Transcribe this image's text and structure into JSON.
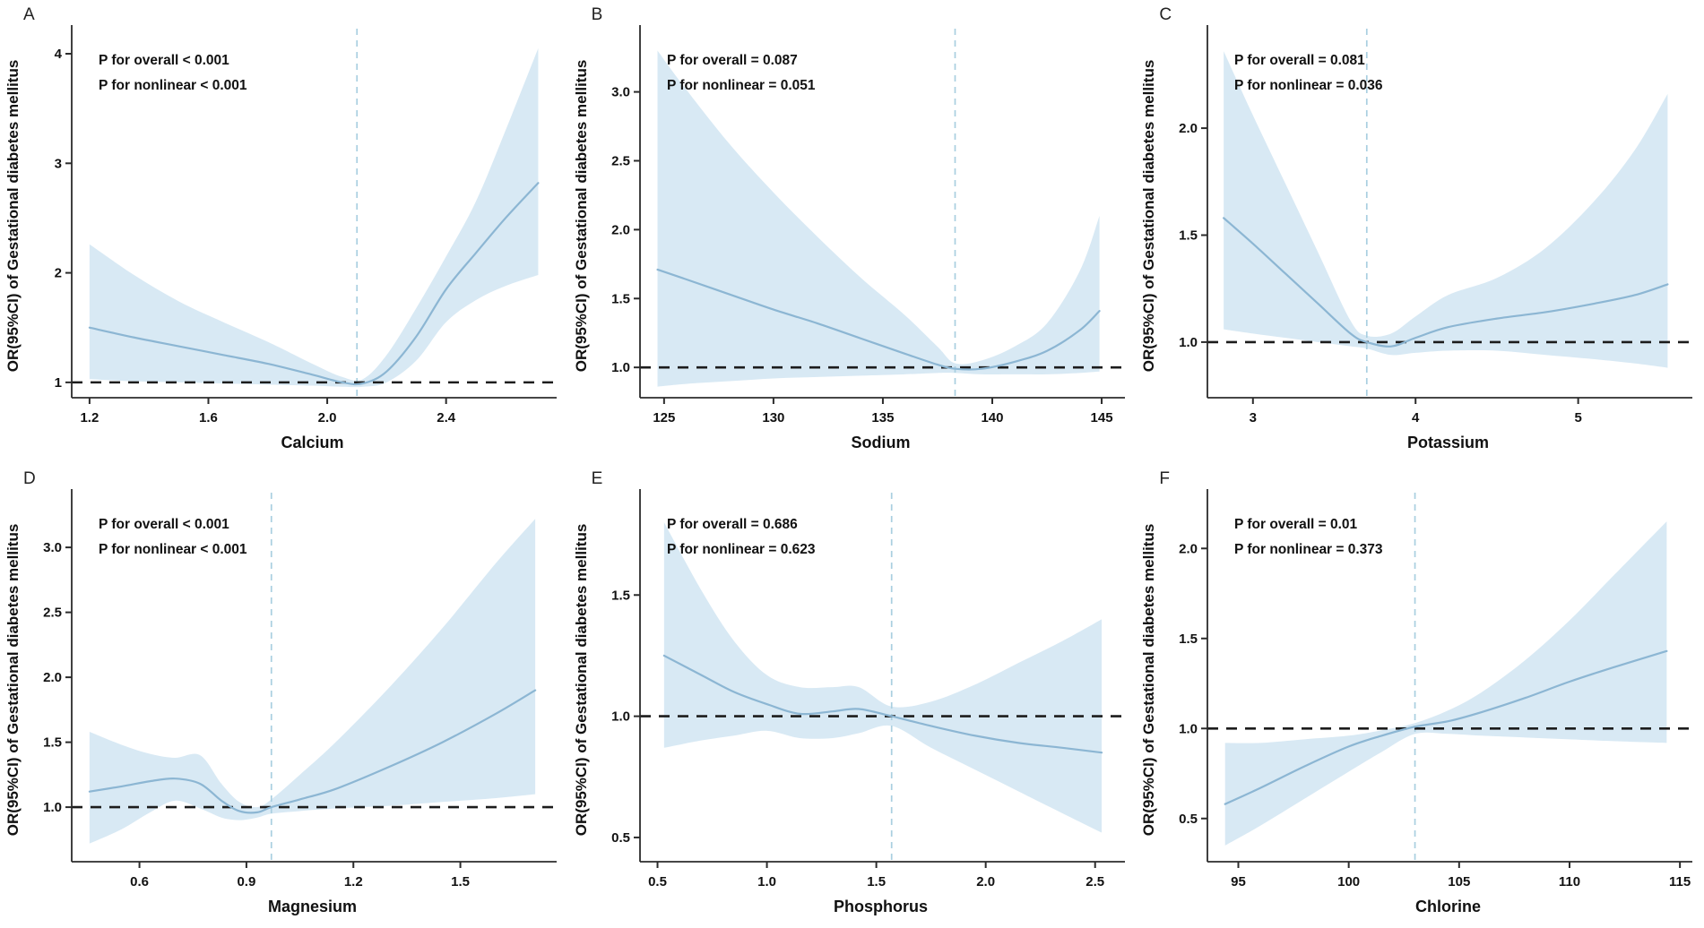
{
  "colors": {
    "ci_band": "#d8e9f4",
    "curve": "#8cb6d3",
    "vline": "#a9cfe0",
    "refline": "#1c1c1c",
    "axis": "#2b2b2b",
    "text": "#111111"
  },
  "chart_data": [
    {
      "panel_label": "A",
      "type": "line",
      "xlabel": "Calcium",
      "ylabel": "OR(95%CI) of Gestational diabetes mellitus",
      "annotations": [
        "P for overall < 0.001",
        "P for nonlinear < 0.001"
      ],
      "xlim": [
        1.14,
        2.76
      ],
      "ylim": [
        0.86,
        4.18
      ],
      "x_ticks": {
        "values": [
          1.2,
          1.6,
          2.0,
          2.4
        ],
        "labels": [
          "1.2",
          "1.6",
          "2.0",
          "2.4"
        ]
      },
      "y_ticks": {
        "values": [
          1,
          2,
          3,
          4
        ],
        "labels": [
          "1",
          "2",
          "3",
          "4"
        ]
      },
      "ref_y": 1.0,
      "vline_x": 2.1,
      "curve": [
        [
          1.2,
          1.5
        ],
        [
          1.35,
          1.41
        ],
        [
          1.5,
          1.33
        ],
        [
          1.65,
          1.25
        ],
        [
          1.8,
          1.17
        ],
        [
          1.95,
          1.07
        ],
        [
          2.05,
          1.0
        ],
        [
          2.12,
          0.99
        ],
        [
          2.2,
          1.1
        ],
        [
          2.3,
          1.42
        ],
        [
          2.4,
          1.85
        ],
        [
          2.5,
          2.18
        ],
        [
          2.6,
          2.5
        ],
        [
          2.71,
          2.82
        ]
      ],
      "ci_upper": [
        [
          1.2,
          2.26
        ],
        [
          1.35,
          1.98
        ],
        [
          1.5,
          1.74
        ],
        [
          1.65,
          1.55
        ],
        [
          1.8,
          1.37
        ],
        [
          1.95,
          1.17
        ],
        [
          2.05,
          1.05
        ],
        [
          2.12,
          1.03
        ],
        [
          2.2,
          1.25
        ],
        [
          2.3,
          1.68
        ],
        [
          2.4,
          2.15
        ],
        [
          2.5,
          2.65
        ],
        [
          2.6,
          3.3
        ],
        [
          2.71,
          4.05
        ]
      ],
      "ci_lower": [
        [
          1.2,
          1.03
        ],
        [
          1.35,
          1.01
        ],
        [
          1.5,
          1.0
        ],
        [
          1.65,
          0.99
        ],
        [
          1.8,
          0.98
        ],
        [
          1.95,
          0.97
        ],
        [
          2.05,
          0.96
        ],
        [
          2.12,
          0.96
        ],
        [
          2.2,
          1.0
        ],
        [
          2.3,
          1.2
        ],
        [
          2.4,
          1.55
        ],
        [
          2.5,
          1.75
        ],
        [
          2.6,
          1.88
        ],
        [
          2.71,
          1.98
        ]
      ]
    },
    {
      "panel_label": "B",
      "type": "line",
      "xlabel": "Sodium",
      "ylabel": "OR(95%CI) of Gestational diabetes mellitus",
      "annotations": [
        "P for overall = 0.087",
        "P for nonlinear = 0.051"
      ],
      "xlim": [
        123.9,
        145.9
      ],
      "ylim": [
        0.78,
        3.42
      ],
      "x_ticks": {
        "values": [
          125,
          130,
          135,
          140,
          145
        ],
        "labels": [
          "125",
          "130",
          "135",
          "140",
          "145"
        ]
      },
      "y_ticks": {
        "values": [
          1.0,
          1.5,
          2.0,
          2.5,
          3.0
        ],
        "labels": [
          "1.0",
          "1.5",
          "2.0",
          "2.5",
          "3.0"
        ]
      },
      "ref_y": 1.0,
      "vline_x": 138.3,
      "curve": [
        [
          124.7,
          1.71
        ],
        [
          126,
          1.64
        ],
        [
          128,
          1.53
        ],
        [
          130,
          1.42
        ],
        [
          132,
          1.32
        ],
        [
          134,
          1.21
        ],
        [
          136,
          1.1
        ],
        [
          137.5,
          1.02
        ],
        [
          138.3,
          0.99
        ],
        [
          139.5,
          0.99
        ],
        [
          141,
          1.04
        ],
        [
          142.5,
          1.12
        ],
        [
          144,
          1.27
        ],
        [
          144.9,
          1.41
        ]
      ],
      "ci_upper": [
        [
          124.7,
          3.3
        ],
        [
          126,
          3.02
        ],
        [
          128,
          2.62
        ],
        [
          130,
          2.27
        ],
        [
          132,
          1.95
        ],
        [
          134,
          1.65
        ],
        [
          136,
          1.38
        ],
        [
          137.5,
          1.15
        ],
        [
          138.3,
          1.03
        ],
        [
          139.5,
          1.05
        ],
        [
          141,
          1.15
        ],
        [
          142.5,
          1.32
        ],
        [
          144,
          1.7
        ],
        [
          144.9,
          2.1
        ]
      ],
      "ci_lower": [
        [
          124.7,
          0.86
        ],
        [
          126,
          0.88
        ],
        [
          128,
          0.9
        ],
        [
          130,
          0.92
        ],
        [
          132,
          0.93
        ],
        [
          134,
          0.94
        ],
        [
          136,
          0.95
        ],
        [
          137.5,
          0.96
        ],
        [
          138.3,
          0.96
        ],
        [
          139.5,
          0.95
        ],
        [
          141,
          0.95
        ],
        [
          142.5,
          0.95
        ],
        [
          144,
          0.96
        ],
        [
          144.9,
          0.97
        ]
      ]
    },
    {
      "panel_label": "C",
      "type": "line",
      "xlabel": "Potassium",
      "ylabel": "OR(95%CI) of Gestational diabetes mellitus",
      "annotations": [
        "P for overall = 0.081",
        "P for nonlinear = 0.036"
      ],
      "xlim": [
        2.72,
        5.68
      ],
      "ylim": [
        0.74,
        2.44
      ],
      "x_ticks": {
        "values": [
          3,
          4,
          5
        ],
        "labels": [
          "3",
          "4",
          "5"
        ]
      },
      "y_ticks": {
        "values": [
          1.0,
          1.5,
          2.0
        ],
        "labels": [
          "1.0",
          "1.5",
          "2.0"
        ]
      },
      "ref_y": 1.0,
      "vline_x": 3.7,
      "curve": [
        [
          2.82,
          1.58
        ],
        [
          3.0,
          1.46
        ],
        [
          3.2,
          1.32
        ],
        [
          3.4,
          1.18
        ],
        [
          3.6,
          1.04
        ],
        [
          3.7,
          1.0
        ],
        [
          3.85,
          0.98
        ],
        [
          4.0,
          1.02
        ],
        [
          4.2,
          1.07
        ],
        [
          4.5,
          1.11
        ],
        [
          4.8,
          1.14
        ],
        [
          5.1,
          1.18
        ],
        [
          5.35,
          1.22
        ],
        [
          5.55,
          1.27
        ]
      ],
      "ci_upper": [
        [
          2.82,
          2.36
        ],
        [
          3.0,
          2.06
        ],
        [
          3.2,
          1.74
        ],
        [
          3.4,
          1.42
        ],
        [
          3.6,
          1.1
        ],
        [
          3.7,
          1.03
        ],
        [
          3.85,
          1.04
        ],
        [
          4.0,
          1.12
        ],
        [
          4.2,
          1.22
        ],
        [
          4.5,
          1.3
        ],
        [
          4.8,
          1.44
        ],
        [
          5.1,
          1.66
        ],
        [
          5.35,
          1.9
        ],
        [
          5.55,
          2.16
        ]
      ],
      "ci_lower": [
        [
          2.82,
          1.06
        ],
        [
          3.0,
          1.04
        ],
        [
          3.2,
          1.02
        ],
        [
          3.4,
          1.0
        ],
        [
          3.6,
          0.98
        ],
        [
          3.7,
          0.97
        ],
        [
          3.85,
          0.94
        ],
        [
          4.0,
          0.95
        ],
        [
          4.2,
          0.96
        ],
        [
          4.5,
          0.96
        ],
        [
          4.8,
          0.94
        ],
        [
          5.1,
          0.92
        ],
        [
          5.35,
          0.9
        ],
        [
          5.55,
          0.88
        ]
      ]
    },
    {
      "panel_label": "D",
      "type": "line",
      "xlabel": "Magnesium",
      "ylabel": "OR(95%CI) of Gestational diabetes mellitus",
      "annotations": [
        "P for overall < 0.001",
        "P for nonlinear < 0.001"
      ],
      "xlim": [
        0.41,
        1.76
      ],
      "ylim": [
        0.58,
        3.38
      ],
      "x_ticks": {
        "values": [
          0.6,
          0.9,
          1.2,
          1.5
        ],
        "labels": [
          "0.6",
          "0.9",
          "1.2",
          "1.5"
        ]
      },
      "y_ticks": {
        "values": [
          1.0,
          1.5,
          2.0,
          2.5,
          3.0
        ],
        "labels": [
          "1.0",
          "1.5",
          "2.0",
          "2.5",
          "3.0"
        ]
      },
      "ref_y": 1.0,
      "vline_x": 0.97,
      "curve": [
        [
          0.46,
          1.12
        ],
        [
          0.55,
          1.16
        ],
        [
          0.63,
          1.2
        ],
        [
          0.7,
          1.22
        ],
        [
          0.77,
          1.18
        ],
        [
          0.83,
          1.05
        ],
        [
          0.88,
          0.97
        ],
        [
          0.93,
          0.96
        ],
        [
          0.97,
          1.0
        ],
        [
          1.05,
          1.06
        ],
        [
          1.15,
          1.14
        ],
        [
          1.3,
          1.31
        ],
        [
          1.45,
          1.5
        ],
        [
          1.6,
          1.72
        ],
        [
          1.71,
          1.9
        ]
      ],
      "ci_upper": [
        [
          0.46,
          1.58
        ],
        [
          0.55,
          1.48
        ],
        [
          0.63,
          1.41
        ],
        [
          0.7,
          1.38
        ],
        [
          0.77,
          1.4
        ],
        [
          0.83,
          1.18
        ],
        [
          0.88,
          1.04
        ],
        [
          0.93,
          1.0
        ],
        [
          0.97,
          1.06
        ],
        [
          1.05,
          1.25
        ],
        [
          1.15,
          1.5
        ],
        [
          1.3,
          1.92
        ],
        [
          1.45,
          2.38
        ],
        [
          1.6,
          2.88
        ],
        [
          1.71,
          3.22
        ]
      ],
      "ci_lower": [
        [
          0.46,
          0.72
        ],
        [
          0.55,
          0.83
        ],
        [
          0.63,
          0.96
        ],
        [
          0.7,
          1.05
        ],
        [
          0.77,
          0.99
        ],
        [
          0.83,
          0.92
        ],
        [
          0.88,
          0.9
        ],
        [
          0.93,
          0.92
        ],
        [
          0.97,
          0.95
        ],
        [
          1.05,
          0.97
        ],
        [
          1.15,
          0.99
        ],
        [
          1.3,
          1.01
        ],
        [
          1.45,
          1.04
        ],
        [
          1.6,
          1.07
        ],
        [
          1.71,
          1.1
        ]
      ]
    },
    {
      "panel_label": "E",
      "type": "line",
      "xlabel": "Phosphorus",
      "ylabel": "OR(95%CI) of Gestational diabetes mellitus",
      "annotations": [
        "P for overall = 0.686",
        "P for nonlinear = 0.623"
      ],
      "xlim": [
        0.42,
        2.62
      ],
      "ylim": [
        0.4,
        1.9
      ],
      "x_ticks": {
        "values": [
          0.5,
          1.0,
          1.5,
          2.0,
          2.5
        ],
        "labels": [
          "0.5",
          "1.0",
          "1.5",
          "2.0",
          "2.5"
        ]
      },
      "y_ticks": {
        "values": [
          0.5,
          1.0,
          1.5
        ],
        "labels": [
          "0.5",
          "1.0",
          "1.5"
        ]
      },
      "ref_y": 1.0,
      "vline_x": 1.57,
      "curve": [
        [
          0.53,
          1.25
        ],
        [
          0.7,
          1.17
        ],
        [
          0.85,
          1.1
        ],
        [
          1.0,
          1.05
        ],
        [
          1.15,
          1.01
        ],
        [
          1.3,
          1.02
        ],
        [
          1.42,
          1.03
        ],
        [
          1.57,
          1.0
        ],
        [
          1.75,
          0.96
        ],
        [
          1.95,
          0.92
        ],
        [
          2.15,
          0.89
        ],
        [
          2.35,
          0.87
        ],
        [
          2.53,
          0.85
        ]
      ],
      "ci_upper": [
        [
          0.53,
          1.8
        ],
        [
          0.7,
          1.52
        ],
        [
          0.85,
          1.31
        ],
        [
          1.0,
          1.17
        ],
        [
          1.15,
          1.12
        ],
        [
          1.3,
          1.12
        ],
        [
          1.42,
          1.12
        ],
        [
          1.57,
          1.04
        ],
        [
          1.75,
          1.06
        ],
        [
          1.95,
          1.13
        ],
        [
          2.15,
          1.22
        ],
        [
          2.35,
          1.31
        ],
        [
          2.53,
          1.4
        ]
      ],
      "ci_lower": [
        [
          0.53,
          0.87
        ],
        [
          0.7,
          0.9
        ],
        [
          0.85,
          0.92
        ],
        [
          1.0,
          0.94
        ],
        [
          1.15,
          0.91
        ],
        [
          1.3,
          0.91
        ],
        [
          1.42,
          0.93
        ],
        [
          1.57,
          0.96
        ],
        [
          1.75,
          0.87
        ],
        [
          1.95,
          0.78
        ],
        [
          2.15,
          0.69
        ],
        [
          2.35,
          0.6
        ],
        [
          2.53,
          0.52
        ]
      ]
    },
    {
      "panel_label": "F",
      "type": "line",
      "xlabel": "Chlorine",
      "ylabel": "OR(95%CI) of Gestational diabetes mellitus",
      "annotations": [
        "P for overall = 0.01",
        "P for nonlinear = 0.373"
      ],
      "xlim": [
        93.6,
        115.4
      ],
      "ylim": [
        0.26,
        2.28
      ],
      "x_ticks": {
        "values": [
          95,
          100,
          105,
          110,
          115
        ],
        "labels": [
          "95",
          "100",
          "105",
          "110",
          "115"
        ]
      },
      "y_ticks": {
        "values": [
          0.5,
          1.0,
          1.5,
          2.0
        ],
        "labels": [
          "0.5",
          "1.0",
          "1.5",
          "2.0"
        ]
      },
      "ref_y": 1.0,
      "vline_x": 103,
      "curve": [
        [
          94.4,
          0.58
        ],
        [
          96,
          0.67
        ],
        [
          98,
          0.79
        ],
        [
          100,
          0.9
        ],
        [
          101.5,
          0.96
        ],
        [
          103,
          1.01
        ],
        [
          104.5,
          1.04
        ],
        [
          106,
          1.09
        ],
        [
          108,
          1.17
        ],
        [
          110,
          1.26
        ],
        [
          112,
          1.34
        ],
        [
          114.4,
          1.43
        ]
      ],
      "ci_upper": [
        [
          94.4,
          0.92
        ],
        [
          96,
          0.92
        ],
        [
          98,
          0.94
        ],
        [
          100,
          0.96
        ],
        [
          101.5,
          0.99
        ],
        [
          103,
          1.03
        ],
        [
          104.5,
          1.1
        ],
        [
          106,
          1.2
        ],
        [
          108,
          1.38
        ],
        [
          110,
          1.6
        ],
        [
          112,
          1.85
        ],
        [
          114.4,
          2.15
        ]
      ],
      "ci_lower": [
        [
          94.4,
          0.35
        ],
        [
          96,
          0.46
        ],
        [
          98,
          0.61
        ],
        [
          100,
          0.76
        ],
        [
          101.5,
          0.87
        ],
        [
          103,
          0.97
        ],
        [
          104.5,
          0.97
        ],
        [
          106,
          0.96
        ],
        [
          108,
          0.95
        ],
        [
          110,
          0.94
        ],
        [
          112,
          0.93
        ],
        [
          114.4,
          0.92
        ]
      ]
    }
  ]
}
